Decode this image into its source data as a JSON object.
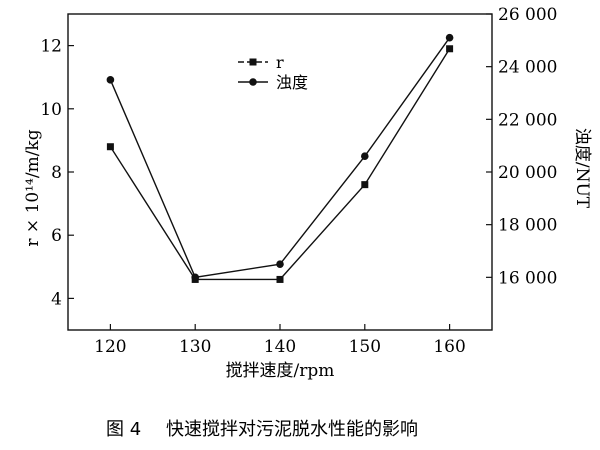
{
  "chart_data": {
    "type": "line",
    "x": [
      120,
      130,
      140,
      150,
      160
    ],
    "xlabel": "搅拌速度/rpm",
    "xlim": [
      115,
      165
    ],
    "xticks": [
      120,
      130,
      140,
      150,
      160
    ],
    "y_left": {
      "label": "r × 10¹⁴/m/kg",
      "lim": [
        3.0,
        13.0
      ],
      "ticks": [
        4,
        6,
        8,
        10,
        12
      ],
      "tick_labels": [
        "4",
        "6",
        "8",
        "10",
        "12"
      ]
    },
    "y_right": {
      "label": "浊度/NUT",
      "lim": [
        14000,
        26000
      ],
      "ticks": [
        16000,
        18000,
        20000,
        22000,
        24000,
        26000
      ],
      "tick_labels": [
        "16 000",
        "18 000",
        "20 000",
        "22 000",
        "24 000",
        "26 000"
      ]
    },
    "series": [
      {
        "name": "r",
        "axis": "left",
        "marker": "square",
        "values": [
          8.8,
          4.6,
          4.6,
          7.6,
          11.9
        ]
      },
      {
        "name": "浊度",
        "axis": "right",
        "marker": "circle",
        "values": [
          23500,
          16000,
          16500,
          20600,
          25100
        ]
      }
    ],
    "legend_position": "top-center",
    "grid": false
  },
  "caption": {
    "figure_no": "图 4",
    "text": "快速搅拌对污泥脱水性能的影响"
  }
}
